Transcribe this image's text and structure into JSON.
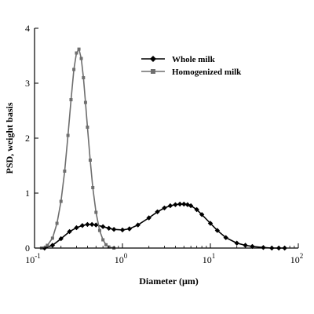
{
  "chart_data": {
    "type": "line",
    "xlabel": "Diameter (μm)",
    "ylabel": "PSD, weight basis",
    "x_scale": "log",
    "xlim": [
      0.1,
      100
    ],
    "ylim": [
      0,
      4
    ],
    "x_ticks": [
      {
        "value": 0.1,
        "base": "10",
        "exp": "-1"
      },
      {
        "value": 1,
        "base": "10",
        "exp": "0"
      },
      {
        "value": 10,
        "base": "10",
        "exp": "1"
      },
      {
        "value": 100,
        "base": "10",
        "exp": "2"
      }
    ],
    "y_ticks": [
      "0",
      "1",
      "2",
      "3",
      "4"
    ],
    "grid": false,
    "legend_position": "top-right",
    "series": [
      {
        "name": "Whole milk",
        "marker": "diamond",
        "color": "#000000",
        "x": [
          0.13,
          0.16,
          0.2,
          0.25,
          0.3,
          0.35,
          0.4,
          0.45,
          0.5,
          0.6,
          0.7,
          0.8,
          1.0,
          1.2,
          1.5,
          2.0,
          2.5,
          3.0,
          3.5,
          4.0,
          4.5,
          5.0,
          5.5,
          6.0,
          7.0,
          8.0,
          10,
          12,
          15,
          20,
          25,
          30,
          40,
          50,
          60,
          70
        ],
        "y": [
          0.0,
          0.05,
          0.17,
          0.3,
          0.37,
          0.41,
          0.43,
          0.43,
          0.42,
          0.39,
          0.36,
          0.34,
          0.33,
          0.35,
          0.42,
          0.55,
          0.66,
          0.73,
          0.77,
          0.79,
          0.8,
          0.8,
          0.79,
          0.77,
          0.7,
          0.61,
          0.45,
          0.32,
          0.19,
          0.09,
          0.05,
          0.03,
          0.01,
          0.0,
          0.0,
          0.0
        ]
      },
      {
        "name": "Homogenized milk",
        "marker": "square",
        "color": "#6e6e6e",
        "x": [
          0.12,
          0.14,
          0.16,
          0.18,
          0.2,
          0.22,
          0.24,
          0.26,
          0.28,
          0.3,
          0.32,
          0.34,
          0.36,
          0.38,
          0.4,
          0.43,
          0.46,
          0.5,
          0.55,
          0.6,
          0.65,
          0.7,
          0.8
        ],
        "y": [
          0.0,
          0.05,
          0.18,
          0.45,
          0.85,
          1.4,
          2.05,
          2.7,
          3.25,
          3.55,
          3.62,
          3.45,
          3.1,
          2.65,
          2.2,
          1.6,
          1.1,
          0.65,
          0.32,
          0.15,
          0.06,
          0.02,
          0.0
        ]
      }
    ]
  }
}
